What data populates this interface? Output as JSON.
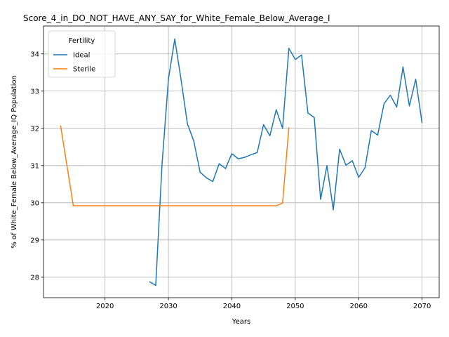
{
  "chart_data": {
    "type": "line",
    "title": "Score_4_in_DO_NOT_HAVE_ANY_SAY_for_White_Female_Below_Average_I",
    "xlabel": "Years",
    "ylabel": "% of White_Female Below_Average_IQ Population",
    "xlim": [
      2010.3,
      2072.7
    ],
    "ylim": [
      27.45,
      34.75
    ],
    "grid": true,
    "legend": {
      "title": "Fertility",
      "placement": "top-left"
    },
    "xticks": [
      2020,
      2030,
      2040,
      2050,
      2060,
      2070
    ],
    "yticks": [
      28,
      29,
      30,
      31,
      32,
      33,
      34
    ],
    "series": [
      {
        "name": "Ideal",
        "color": "#1f77b4",
        "x": [
          2027,
          2028,
          2029,
          2030,
          2031,
          2032,
          2033,
          2034,
          2035,
          2036,
          2037,
          2038,
          2039,
          2040,
          2041,
          2042,
          2043,
          2044,
          2045,
          2046,
          2047,
          2048,
          2049,
          2050,
          2051,
          2052,
          2053,
          2054,
          2055,
          2056,
          2057,
          2058,
          2059,
          2060,
          2061,
          2062,
          2063,
          2064,
          2065,
          2066,
          2067,
          2068,
          2069,
          2070
        ],
        "y": [
          27.88,
          27.78,
          31.05,
          33.32,
          34.4,
          33.3,
          32.12,
          31.66,
          30.82,
          30.67,
          30.57,
          31.05,
          30.92,
          31.32,
          31.18,
          31.22,
          31.29,
          31.35,
          32.1,
          31.8,
          32.5,
          32.0,
          34.15,
          33.85,
          33.97,
          32.41,
          32.29,
          30.09,
          31.0,
          29.81,
          31.44,
          31.01,
          31.13,
          30.68,
          30.94,
          31.94,
          31.82,
          32.66,
          32.89,
          32.57,
          33.65,
          32.6,
          33.32,
          32.14
        ]
      },
      {
        "name": "Sterile",
        "color": "#ff7f0e",
        "x": [
          2013,
          2015,
          2020,
          2025,
          2030,
          2035,
          2040,
          2045,
          2047,
          2048,
          2049
        ],
        "y": [
          32.07,
          29.92,
          29.92,
          29.92,
          29.92,
          29.92,
          29.92,
          29.92,
          29.92,
          29.99,
          32.03
        ]
      }
    ]
  }
}
